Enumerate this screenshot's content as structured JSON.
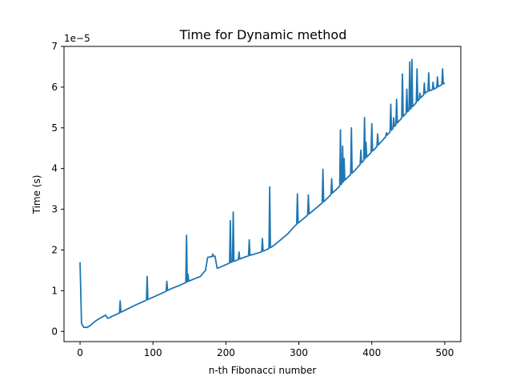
{
  "chart_data": {
    "type": "line",
    "title": "Time for Dynamic method",
    "xlabel": "n-th Fibonacci number",
    "ylabel": "Time (s)",
    "y_scale_label": "1e−5",
    "y_scale": 1e-05,
    "xlim": [
      -22,
      522
    ],
    "ylim": [
      -0.25,
      7.0
    ],
    "xticks": [
      0,
      100,
      200,
      300,
      400,
      500
    ],
    "yticks": [
      0,
      1,
      2,
      3,
      4,
      5,
      6,
      7
    ],
    "grid": false,
    "line_color": "#1f77b4",
    "series": [
      {
        "baseline": [
          [
            0,
            1.7
          ],
          [
            2,
            0.2
          ],
          [
            5,
            0.1
          ],
          [
            10,
            0.1
          ],
          [
            15,
            0.16
          ],
          [
            20,
            0.24
          ],
          [
            25,
            0.3
          ],
          [
            30,
            0.35
          ],
          [
            35,
            0.4
          ],
          [
            38,
            0.32
          ],
          [
            45,
            0.38
          ],
          [
            55,
            0.46
          ],
          [
            65,
            0.55
          ],
          [
            75,
            0.64
          ],
          [
            85,
            0.72
          ],
          [
            95,
            0.8
          ],
          [
            105,
            0.88
          ],
          [
            115,
            0.96
          ],
          [
            125,
            1.05
          ],
          [
            135,
            1.12
          ],
          [
            145,
            1.2
          ],
          [
            155,
            1.28
          ],
          [
            165,
            1.35
          ],
          [
            172,
            1.5
          ],
          [
            175,
            1.82
          ],
          [
            185,
            1.85
          ],
          [
            188,
            1.55
          ],
          [
            195,
            1.6
          ],
          [
            205,
            1.68
          ],
          [
            215,
            1.75
          ],
          [
            225,
            1.82
          ],
          [
            235,
            1.88
          ],
          [
            245,
            1.93
          ],
          [
            255,
            2.0
          ],
          [
            265,
            2.1
          ],
          [
            275,
            2.25
          ],
          [
            285,
            2.4
          ],
          [
            295,
            2.6
          ],
          [
            305,
            2.75
          ],
          [
            315,
            2.9
          ],
          [
            325,
            3.05
          ],
          [
            335,
            3.2
          ],
          [
            345,
            3.38
          ],
          [
            355,
            3.55
          ],
          [
            365,
            3.75
          ],
          [
            375,
            3.92
          ],
          [
            385,
            4.12
          ],
          [
            395,
            4.32
          ],
          [
            405,
            4.5
          ],
          [
            415,
            4.7
          ],
          [
            425,
            4.9
          ],
          [
            435,
            5.12
          ],
          [
            445,
            5.32
          ],
          [
            455,
            5.5
          ],
          [
            465,
            5.7
          ],
          [
            475,
            5.88
          ],
          [
            485,
            5.95
          ],
          [
            495,
            6.05
          ],
          [
            500,
            6.1
          ]
        ],
        "spikes": [
          [
            55,
            0.75
          ],
          [
            92,
            1.35
          ],
          [
            119,
            1.23
          ],
          [
            146,
            2.36
          ],
          [
            148,
            1.4
          ],
          [
            182,
            1.9
          ],
          [
            206,
            2.72
          ],
          [
            210,
            2.93
          ],
          [
            218,
            1.95
          ],
          [
            232,
            2.25
          ],
          [
            250,
            2.28
          ],
          [
            260,
            3.55
          ],
          [
            298,
            3.38
          ],
          [
            313,
            3.35
          ],
          [
            333,
            3.98
          ],
          [
            345,
            3.75
          ],
          [
            357,
            4.95
          ],
          [
            360,
            4.55
          ],
          [
            362,
            4.25
          ],
          [
            372,
            5.0
          ],
          [
            385,
            4.45
          ],
          [
            390,
            5.25
          ],
          [
            392,
            4.65
          ],
          [
            400,
            5.1
          ],
          [
            408,
            4.85
          ],
          [
            420,
            4.88
          ],
          [
            426,
            5.58
          ],
          [
            430,
            5.25
          ],
          [
            434,
            5.7
          ],
          [
            442,
            6.32
          ],
          [
            448,
            5.95
          ],
          [
            452,
            6.62
          ],
          [
            455,
            6.68
          ],
          [
            462,
            6.45
          ],
          [
            466,
            5.85
          ],
          [
            472,
            6.1
          ],
          [
            478,
            6.35
          ],
          [
            484,
            6.12
          ],
          [
            490,
            6.25
          ],
          [
            497,
            6.45
          ]
        ]
      }
    ]
  }
}
